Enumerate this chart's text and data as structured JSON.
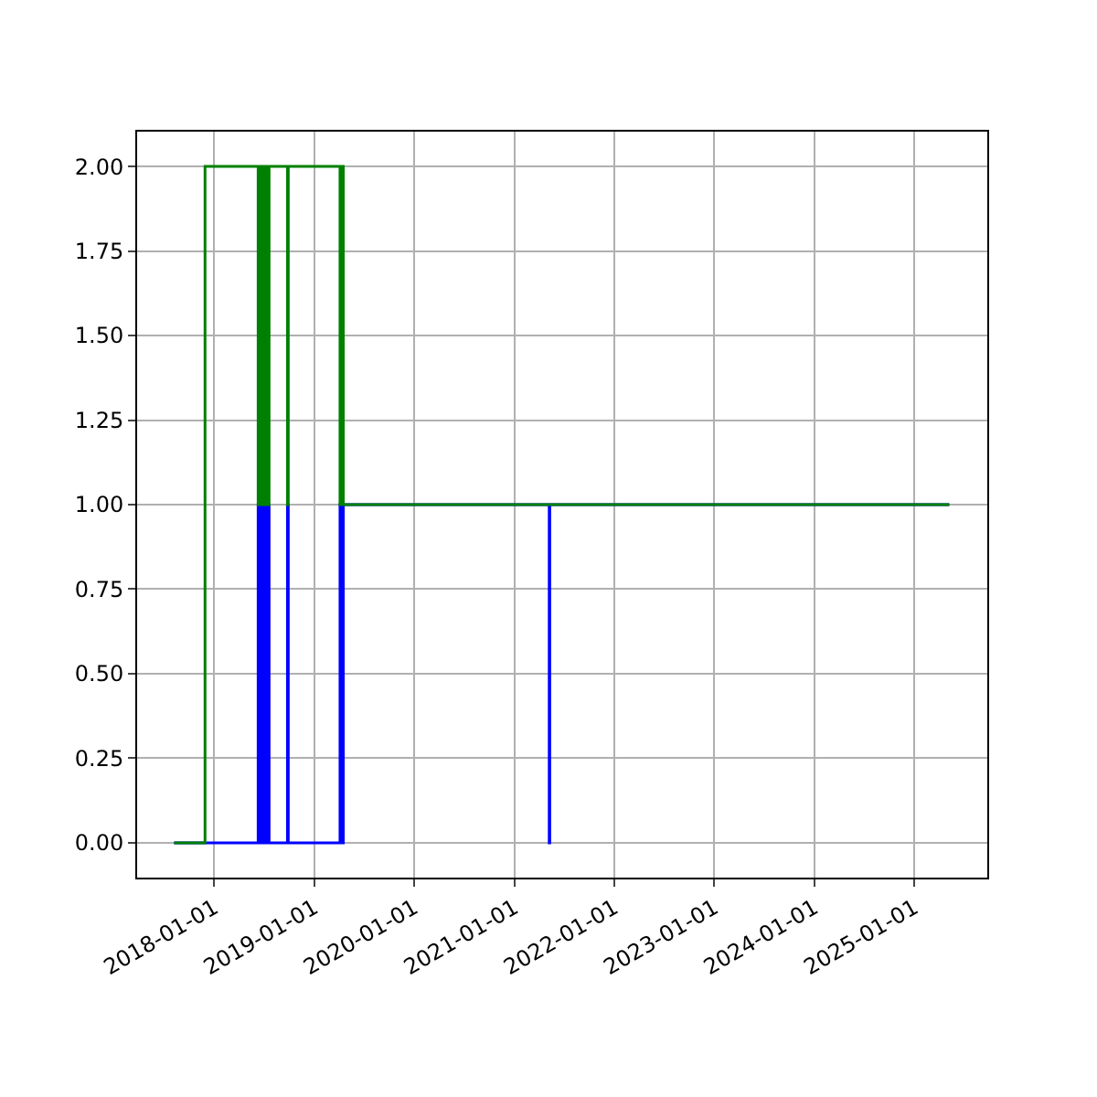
{
  "chart_data": {
    "type": "step",
    "grid": true,
    "xlim": [
      "2017-03-25",
      "2025-09-24"
    ],
    "xticks": [
      {
        "value": "2018-01-01",
        "label": "2018-01-01"
      },
      {
        "value": "2019-01-01",
        "label": "2019-01-01"
      },
      {
        "value": "2020-01-01",
        "label": "2020-01-01"
      },
      {
        "value": "2021-01-01",
        "label": "2021-01-01"
      },
      {
        "value": "2022-01-01",
        "label": "2022-01-01"
      },
      {
        "value": "2023-01-01",
        "label": "2023-01-01"
      },
      {
        "value": "2024-01-01",
        "label": "2024-01-01"
      },
      {
        "value": "2025-01-01",
        "label": "2025-01-01"
      }
    ],
    "ylim": [
      -0.103,
      2.103
    ],
    "yticks": [
      {
        "value": 0,
        "label": "0.00"
      },
      {
        "value": 0.25,
        "label": "0.25"
      },
      {
        "value": 0.5,
        "label": "0.50"
      },
      {
        "value": 0.75,
        "label": "0.75"
      },
      {
        "value": 1,
        "label": "1.00"
      },
      {
        "value": 1.25,
        "label": "1.25"
      },
      {
        "value": 1.5,
        "label": "1.50"
      },
      {
        "value": 1.75,
        "label": "1.75"
      },
      {
        "value": 2,
        "label": "2.00"
      }
    ],
    "series": [
      {
        "color": "#0000ff",
        "x": [
          "2017-08-07",
          "2018-06-10",
          "2018-06-12",
          "2018-06-16",
          "2018-06-19",
          "2018-06-23",
          "2018-06-26",
          "2018-06-30",
          "2018-07-03",
          "2018-07-08",
          "2018-07-11",
          "2018-07-16",
          "2018-07-20",
          "2018-09-25",
          "2018-09-28",
          "2019-04-05",
          "2019-04-09",
          "2019-04-17",
          "2021-05-08",
          "2021-05-10",
          "2025-05-08"
        ],
        "values": [
          0,
          1,
          0,
          1,
          0,
          1,
          0,
          1,
          0,
          1,
          0,
          1,
          0,
          1,
          0,
          1,
          0,
          1,
          0,
          1,
          1
        ]
      },
      {
        "color": "#008000",
        "x": [
          "2017-08-07",
          "2017-11-28",
          "2018-06-10",
          "2018-06-12",
          "2018-06-16",
          "2018-06-19",
          "2018-06-23",
          "2018-06-26",
          "2018-06-30",
          "2018-07-03",
          "2018-07-08",
          "2018-07-11",
          "2018-07-16",
          "2018-07-20",
          "2018-09-25",
          "2018-09-28",
          "2019-04-05",
          "2019-04-09",
          "2019-04-17",
          "2025-05-08"
        ],
        "values": [
          0,
          2,
          1,
          2,
          1,
          2,
          1,
          2,
          1,
          2,
          1,
          2,
          1,
          2,
          1,
          2,
          1,
          2,
          1,
          1
        ]
      }
    ]
  }
}
